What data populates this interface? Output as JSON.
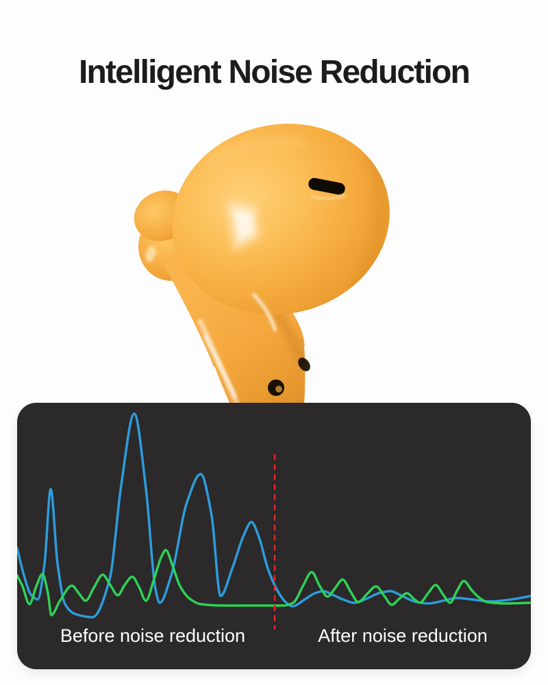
{
  "title": "Intelligent Noise Reduction",
  "product": {
    "name": "yellow wireless earbud",
    "colors": {
      "body": "#F6AC3F",
      "body_light": "#FFD078",
      "body_dark": "#DE8F28",
      "highlight": "#FFFFFF",
      "slot": "#0F0A03",
      "mic_hole": "#170F04"
    }
  },
  "noise_chart": {
    "before_label": "Before noise reduction",
    "after_label": "After noise reduction",
    "panel_bg": "#2B2929",
    "label_color": "#FFFFFF",
    "divider_color": "#E8252A",
    "line_blue": "#2D9CDB",
    "line_green": "#2ED157"
  },
  "chart_data": {
    "type": "line",
    "title": "",
    "description": "Stylized sound-amplitude waveforms inside dark panel; left of red dashed divider = noisy signal with large spikes, right = attenuated signal",
    "x_range": [
      0,
      750
    ],
    "y_range": [
      0,
      389
    ],
    "grid": false,
    "legend": "none",
    "series": [
      {
        "name": "noisy-signal-wave",
        "color": "#2D9CDB",
        "points": [
          [
            0,
            212
          ],
          [
            10,
            252
          ],
          [
            20,
            280
          ],
          [
            30,
            287
          ],
          [
            40,
            235
          ],
          [
            49,
            126
          ],
          [
            59,
            235
          ],
          [
            70,
            294
          ],
          [
            84,
            308
          ],
          [
            110,
            313
          ],
          [
            135,
            258
          ],
          [
            152,
            120
          ],
          [
            171,
            16
          ],
          [
            188,
            125
          ],
          [
            202,
            272
          ],
          [
            208,
            292
          ],
          [
            225,
            252
          ],
          [
            248,
            145
          ],
          [
            268,
            104
          ],
          [
            284,
            165
          ],
          [
            297,
            282
          ],
          [
            314,
            242
          ],
          [
            331,
            193
          ],
          [
            342,
            174
          ],
          [
            353,
            196
          ],
          [
            366,
            242
          ],
          [
            380,
            274
          ],
          [
            392,
            291
          ],
          [
            402,
            297
          ],
          [
            420,
            287
          ],
          [
            435,
            278
          ],
          [
            447,
            275
          ],
          [
            462,
            281
          ],
          [
            478,
            288
          ],
          [
            492,
            292
          ],
          [
            510,
            286
          ],
          [
            528,
            278
          ],
          [
            545,
            275
          ],
          [
            562,
            282
          ],
          [
            580,
            290
          ],
          [
            600,
            293
          ],
          [
            622,
            289
          ],
          [
            642,
            285
          ],
          [
            663,
            287
          ],
          [
            692,
            290
          ],
          [
            722,
            287
          ],
          [
            750,
            282
          ]
        ]
      },
      {
        "name": "reduced-signal-wave",
        "color": "#2ED157",
        "points": [
          [
            0,
            252
          ],
          [
            8,
            268
          ],
          [
            18,
            294
          ],
          [
            28,
            268
          ],
          [
            37,
            250
          ],
          [
            45,
            278
          ],
          [
            50,
            310
          ],
          [
            62,
            290
          ],
          [
            80,
            267
          ],
          [
            90,
            278
          ],
          [
            100,
            289
          ],
          [
            112,
            270
          ],
          [
            125,
            251
          ],
          [
            136,
            266
          ],
          [
            147,
            281
          ],
          [
            157,
            266
          ],
          [
            168,
            254
          ],
          [
            178,
            269
          ],
          [
            188,
            289
          ],
          [
            200,
            257
          ],
          [
            211,
            224
          ],
          [
            217,
            215
          ],
          [
            227,
            238
          ],
          [
            238,
            268
          ],
          [
            252,
            286
          ],
          [
            268,
            294
          ],
          [
            300,
            296
          ],
          [
            340,
            296
          ],
          [
            376,
            296
          ],
          [
            390,
            296
          ],
          [
            403,
            292
          ],
          [
            418,
            266
          ],
          [
            430,
            247
          ],
          [
            442,
            268
          ],
          [
            453,
            283
          ],
          [
            464,
            271
          ],
          [
            475,
            258
          ],
          [
            487,
            276
          ],
          [
            498,
            291
          ],
          [
            511,
            279
          ],
          [
            524,
            268
          ],
          [
            536,
            282
          ],
          [
            547,
            295
          ],
          [
            558,
            286
          ],
          [
            569,
            278
          ],
          [
            579,
            286
          ],
          [
            588,
            292
          ],
          [
            600,
            278
          ],
          [
            611,
            266
          ],
          [
            622,
            280
          ],
          [
            632,
            292
          ],
          [
            643,
            273
          ],
          [
            652,
            260
          ],
          [
            664,
            274
          ],
          [
            674,
            284
          ],
          [
            686,
            291
          ],
          [
            715,
            293
          ],
          [
            750,
            292
          ]
        ]
      }
    ],
    "annotations": [
      {
        "type": "vline",
        "role": "before-after-divider",
        "x": 376,
        "y1": 75,
        "y2": 331,
        "style": "dashed",
        "dash": "8.5 6.2",
        "color": "#E8252A",
        "width": 2.4
      }
    ],
    "labels": {
      "before": "Before noise reduction",
      "after": "After noise reduction"
    }
  }
}
